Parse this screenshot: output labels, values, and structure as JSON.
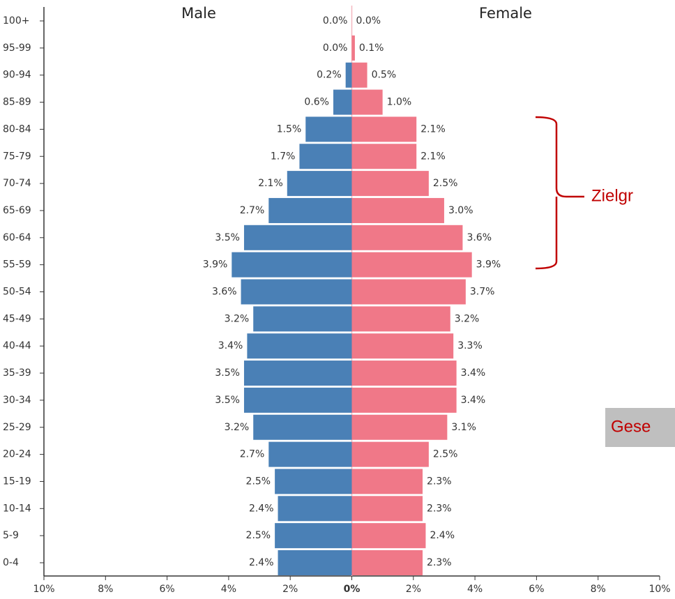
{
  "chart_data": {
    "type": "pyramid",
    "categories": [
      "100+",
      "95-99",
      "90-94",
      "85-89",
      "80-84",
      "75-79",
      "70-74",
      "65-69",
      "60-64",
      "55-59",
      "50-54",
      "45-49",
      "40-44",
      "35-39",
      "30-34",
      "25-29",
      "20-24",
      "15-19",
      "10-14",
      "5-9",
      "0-4"
    ],
    "series": [
      {
        "name": "Male",
        "color": "#4a80b6",
        "values": [
          0.0,
          0.0,
          0.2,
          0.6,
          1.5,
          1.7,
          2.1,
          2.7,
          3.5,
          3.9,
          3.6,
          3.2,
          3.4,
          3.5,
          3.5,
          3.2,
          2.7,
          2.5,
          2.4,
          2.5,
          2.4
        ],
        "value_labels": [
          "0.0%",
          "0.0%",
          "0.2%",
          "0.6%",
          "1.5%",
          "1.7%",
          "2.1%",
          "2.7%",
          "3.5%",
          "3.9%",
          "3.6%",
          "3.2%",
          "3.4%",
          "3.5%",
          "3.5%",
          "3.2%",
          "2.7%",
          "2.5%",
          "2.4%",
          "2.5%",
          "2.4%"
        ]
      },
      {
        "name": "Female",
        "color": "#f07888",
        "values": [
          0.0,
          0.1,
          0.5,
          1.0,
          2.1,
          2.1,
          2.5,
          3.0,
          3.6,
          3.9,
          3.7,
          3.2,
          3.3,
          3.4,
          3.4,
          3.1,
          2.5,
          2.3,
          2.3,
          2.4,
          2.3
        ],
        "value_labels": [
          "0.0%",
          "0.1%",
          "0.5%",
          "1.0%",
          "2.1%",
          "2.1%",
          "2.5%",
          "3.0%",
          "3.6%",
          "3.9%",
          "3.7%",
          "3.2%",
          "3.3%",
          "3.4%",
          "3.4%",
          "3.1%",
          "2.5%",
          "2.3%",
          "2.3%",
          "2.4%",
          "2.3%"
        ]
      }
    ],
    "xlim": [
      -10,
      10
    ],
    "xticks": [
      {
        "value": -10,
        "label": "10%"
      },
      {
        "value": -8,
        "label": "8%"
      },
      {
        "value": -6,
        "label": "6%"
      },
      {
        "value": -4,
        "label": "4%"
      },
      {
        "value": -2,
        "label": "2%"
      },
      {
        "value": 0,
        "label": "0%"
      },
      {
        "value": 2,
        "label": "2%"
      },
      {
        "value": 4,
        "label": "4%"
      },
      {
        "value": 6,
        "label": "6%"
      },
      {
        "value": 8,
        "label": "8%"
      },
      {
        "value": 10,
        "label": "10%"
      }
    ],
    "annotations": [
      "Zielgr",
      "Gese"
    ]
  }
}
